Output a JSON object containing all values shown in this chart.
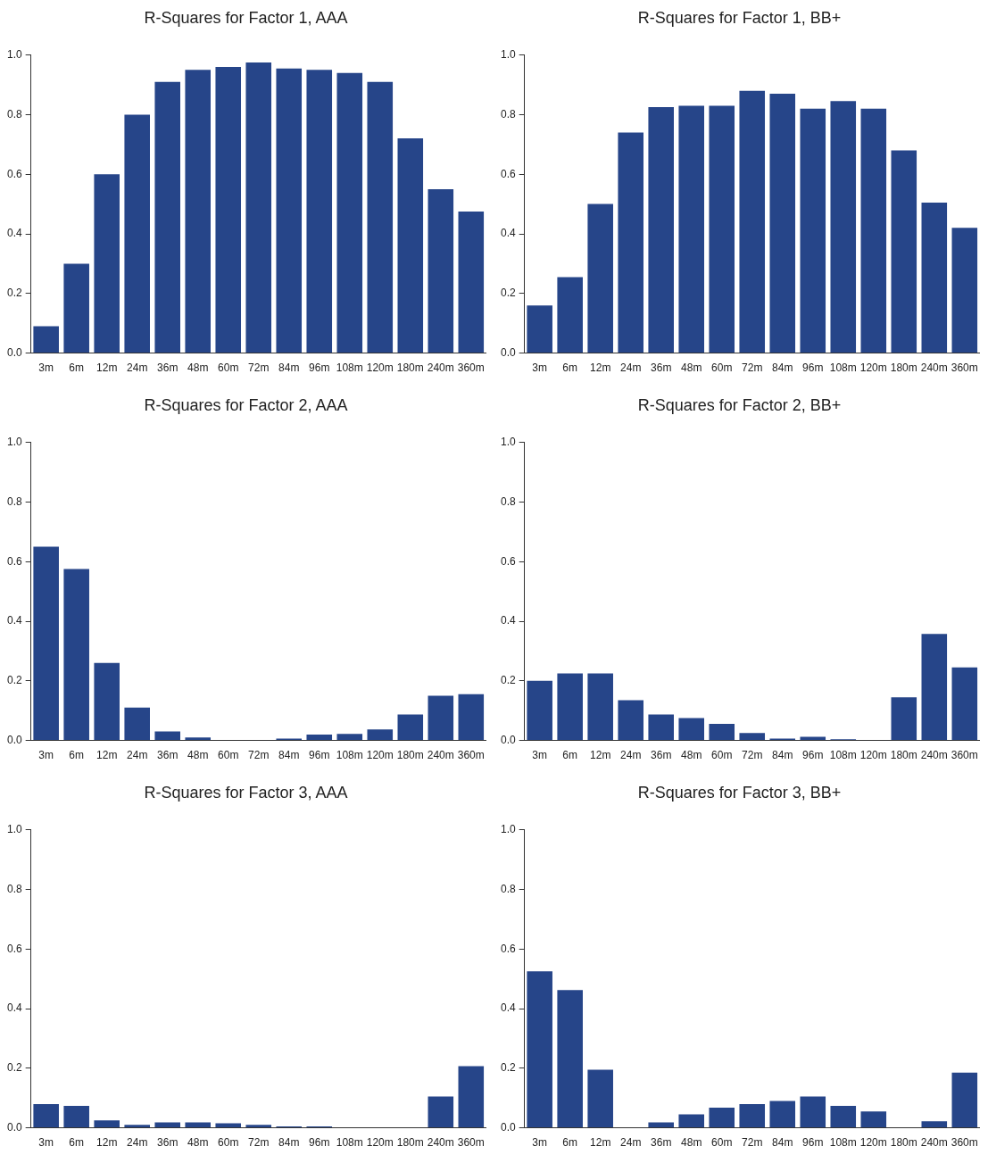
{
  "chart_data": [
    {
      "type": "bar",
      "title": "R-Squares for Factor 1, AAA",
      "categories": [
        "3m",
        "6m",
        "12m",
        "24m",
        "36m",
        "48m",
        "60m",
        "72m",
        "84m",
        "96m",
        "108m",
        "120m",
        "180m",
        "240m",
        "360m"
      ],
      "color": "#264589",
      "ylim": [
        0,
        1
      ],
      "yticks": [
        {
          "value": 0,
          "label": "0.0"
        },
        {
          "value": 0.2,
          "label": "0.2"
        },
        {
          "value": 0.4,
          "label": "0.4"
        },
        {
          "value": 0.6,
          "label": "0.6"
        },
        {
          "value": 0.8,
          "label": "0.8"
        },
        {
          "value": 1,
          "label": "1.0"
        }
      ],
      "values": [
        0.09,
        0.3,
        0.6,
        0.8,
        0.91,
        0.95,
        0.96,
        0.975,
        0.955,
        0.95,
        0.94,
        0.91,
        0.72,
        0.55,
        0.475
      ]
    },
    {
      "type": "bar",
      "title": "R-Squares for Factor 1, BB+",
      "categories": [
        "3m",
        "6m",
        "12m",
        "24m",
        "36m",
        "48m",
        "60m",
        "72m",
        "84m",
        "96m",
        "108m",
        "120m",
        "180m",
        "240m",
        "360m"
      ],
      "color": "#264589",
      "ylim": [
        0,
        1
      ],
      "yticks": [
        {
          "value": 0,
          "label": "0.0"
        },
        {
          "value": 0.2,
          "label": "0.2"
        },
        {
          "value": 0.4,
          "label": "0.4"
        },
        {
          "value": 0.6,
          "label": "0.6"
        },
        {
          "value": 0.8,
          "label": "0.8"
        },
        {
          "value": 1,
          "label": "1.0"
        }
      ],
      "values": [
        0.16,
        0.255,
        0.5,
        0.74,
        0.825,
        0.83,
        0.83,
        0.88,
        0.87,
        0.82,
        0.845,
        0.82,
        0.68,
        0.505,
        0.42
      ]
    },
    {
      "type": "bar",
      "title": "R-Squares for Factor 2, AAA",
      "categories": [
        "3m",
        "6m",
        "12m",
        "24m",
        "36m",
        "48m",
        "60m",
        "72m",
        "84m",
        "96m",
        "108m",
        "120m",
        "180m",
        "240m",
        "360m"
      ],
      "color": "#264589",
      "ylim": [
        0,
        1
      ],
      "yticks": [
        {
          "value": 0,
          "label": "0.0"
        },
        {
          "value": 0.2,
          "label": "0.2"
        },
        {
          "value": 0.4,
          "label": "0.4"
        },
        {
          "value": 0.6,
          "label": "0.6"
        },
        {
          "value": 0.8,
          "label": "0.8"
        },
        {
          "value": 1,
          "label": "1.0"
        }
      ],
      "values": [
        0.65,
        0.575,
        0.26,
        0.11,
        0.03,
        0.01,
        null,
        0.002,
        0.006,
        0.02,
        0.022,
        0.037,
        0.087,
        0.15,
        0.155
      ]
    },
    {
      "type": "bar",
      "title": "R-Squares for Factor 2, BB+",
      "categories": [
        "3m",
        "6m",
        "12m",
        "24m",
        "36m",
        "48m",
        "60m",
        "72m",
        "84m",
        "96m",
        "108m",
        "120m",
        "180m",
        "240m",
        "360m"
      ],
      "color": "#264589",
      "ylim": [
        0,
        1
      ],
      "yticks": [
        {
          "value": 0,
          "label": "0.0"
        },
        {
          "value": 0.2,
          "label": "0.2"
        },
        {
          "value": 0.4,
          "label": "0.4"
        },
        {
          "value": 0.6,
          "label": "0.6"
        },
        {
          "value": 0.8,
          "label": "0.8"
        },
        {
          "value": 1,
          "label": "1.0"
        }
      ],
      "values": [
        0.2,
        0.225,
        0.225,
        0.135,
        0.087,
        0.075,
        0.056,
        0.025,
        0.006,
        0.012,
        0.004,
        null,
        0.145,
        0.357,
        0.245
      ]
    },
    {
      "type": "bar",
      "title": "R-Squares for Factor 3, AAA",
      "categories": [
        "3m",
        "6m",
        "12m",
        "24m",
        "36m",
        "48m",
        "60m",
        "72m",
        "84m",
        "96m",
        "108m",
        "120m",
        "180m",
        "240m",
        "360m"
      ],
      "color": "#264589",
      "ylim": [
        0,
        1
      ],
      "yticks": [
        {
          "value": 0,
          "label": "0.0"
        },
        {
          "value": 0.2,
          "label": "0.2"
        },
        {
          "value": 0.4,
          "label": "0.4"
        },
        {
          "value": 0.6,
          "label": "0.6"
        },
        {
          "value": 0.8,
          "label": "0.8"
        },
        {
          "value": 1,
          "label": "1.0"
        }
      ],
      "values": [
        0.08,
        0.074,
        0.025,
        0.01,
        0.018,
        0.018,
        0.015,
        0.01,
        0.005,
        0.005,
        null,
        null,
        0.002,
        0.105,
        0.207
      ]
    },
    {
      "type": "bar",
      "title": "R-Squares for Factor 3, BB+",
      "categories": [
        "3m",
        "6m",
        "12m",
        "24m",
        "36m",
        "48m",
        "60m",
        "72m",
        "84m",
        "96m",
        "108m",
        "120m",
        "180m",
        "240m",
        "360m"
      ],
      "color": "#264589",
      "ylim": [
        0,
        1
      ],
      "yticks": [
        {
          "value": 0,
          "label": "0.0"
        },
        {
          "value": 0.2,
          "label": "0.2"
        },
        {
          "value": 0.4,
          "label": "0.4"
        },
        {
          "value": 0.6,
          "label": "0.6"
        },
        {
          "value": 0.8,
          "label": "0.8"
        },
        {
          "value": 1,
          "label": "1.0"
        }
      ],
      "values": [
        0.525,
        0.462,
        0.195,
        null,
        0.018,
        0.045,
        0.068,
        0.08,
        0.09,
        0.105,
        0.074,
        0.055,
        null,
        0.022,
        0.185
      ]
    }
  ]
}
